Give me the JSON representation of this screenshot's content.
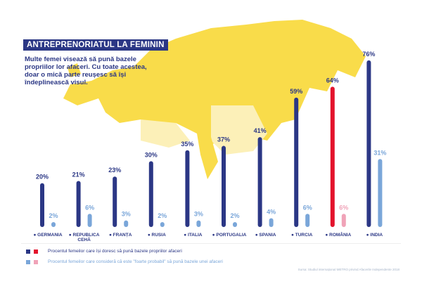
{
  "header": {
    "title": "ANTREPRENORIATUL LA FEMININ",
    "subtitle": "Multe femei visează să pună bazele propriilor lor afaceri. Cu toate acestea, doar o mică parte reușesc să își îndeplinească visul."
  },
  "colors": {
    "dark": "#2b3785",
    "light": "#7aa6d9",
    "highlight": "#e3132c",
    "highlight_light": "#f0a3b8",
    "map": "#f9dc4a",
    "map_light": "#fcf0b8"
  },
  "chart_data": {
    "type": "bar",
    "categories": [
      "GERMANIA",
      "REPUBLICA CEHĂ",
      "FRANȚA",
      "RUSIA",
      "ITALIA",
      "PORTUGALIA",
      "SPANIA",
      "TURCIA",
      "ROMÂNIA",
      "INDIA"
    ],
    "series": [
      {
        "name": "Procentul femeilor care își doresc să pună bazele propriilor afaceri",
        "values": [
          20,
          21,
          23,
          30,
          35,
          37,
          41,
          59,
          64,
          76
        ]
      },
      {
        "name": "Procentul femeilor care consideră că este \"foarte probabil\" să pună bazele unei afaceri",
        "values": [
          2,
          6,
          3,
          2,
          3,
          2,
          4,
          6,
          6,
          31
        ]
      }
    ],
    "highlight_category": "ROMÂNIA",
    "value_suffix": "%",
    "ylim": [
      0,
      80
    ]
  },
  "legend": {
    "item1": "Procentul femeilor care își doresc să pună bazele propriilor afaceri",
    "item2": "Procentul femeilor care consideră că este \"foarte probabil\" să pună bazele unei afaceri"
  },
  "source": "Sursa: Studiul internațional METRO privind Afacerile Independente 2018"
}
